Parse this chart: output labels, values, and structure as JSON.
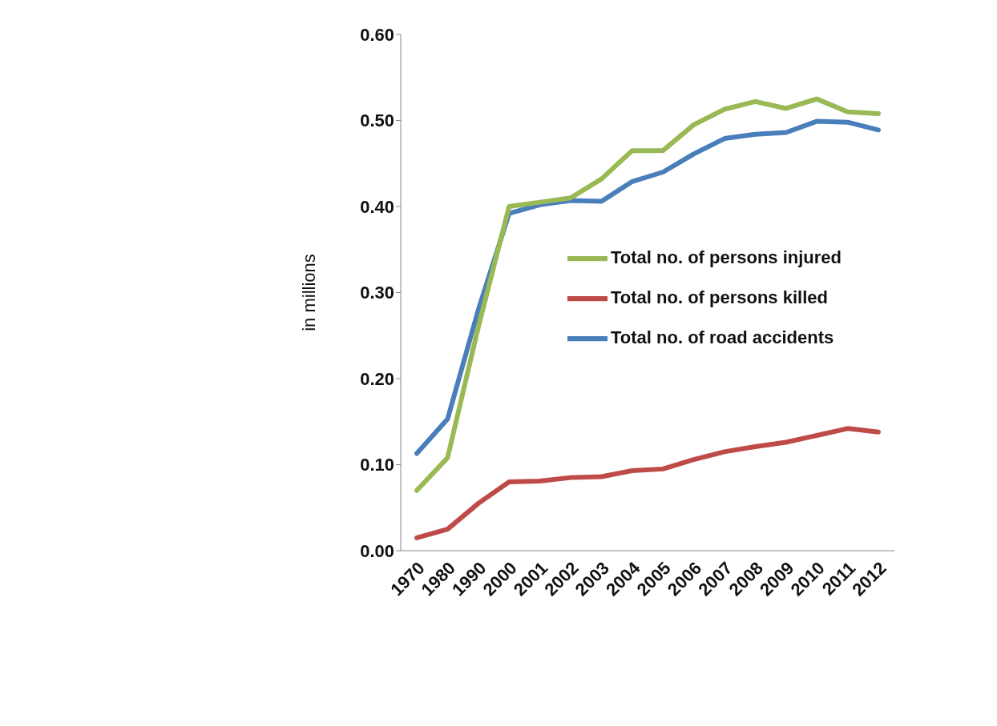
{
  "chart_data": {
    "type": "line",
    "ylabel": "in millions",
    "categories": [
      "1970",
      "1980",
      "1990",
      "2000",
      "2001",
      "2002",
      "2003",
      "2004",
      "2005",
      "2006",
      "2007",
      "2008",
      "2009",
      "2010",
      "2011",
      "2012"
    ],
    "series": [
      {
        "name": "Total no. of road accidents",
        "color": "#4a7ebb",
        "values": [
          0.113,
          0.153,
          0.28,
          0.392,
          0.402,
          0.407,
          0.406,
          0.429,
          0.44,
          0.461,
          0.479,
          0.484,
          0.486,
          0.499,
          0.498,
          0.489
        ]
      },
      {
        "name": "Total no. of persons killed",
        "color": "#be4b48",
        "values": [
          0.015,
          0.025,
          0.055,
          0.08,
          0.081,
          0.085,
          0.086,
          0.093,
          0.095,
          0.106,
          0.115,
          0.121,
          0.126,
          0.134,
          0.142,
          0.138
        ]
      },
      {
        "name": "Total no. of persons injured",
        "color": "#98b954",
        "values": [
          0.07,
          0.108,
          0.26,
          0.4,
          0.405,
          0.41,
          0.432,
          0.465,
          0.465,
          0.495,
          0.513,
          0.522,
          0.514,
          0.525,
          0.51,
          0.508
        ]
      }
    ],
    "ylim": [
      0,
      0.6
    ],
    "yticks": [
      {
        "value": 0,
        "label": "0.00"
      },
      {
        "value": 0.1,
        "label": "0.10"
      },
      {
        "value": 0.2,
        "label": "0.20"
      },
      {
        "value": 0.3,
        "label": "0.30"
      },
      {
        "value": 0.4,
        "label": "0.40"
      },
      {
        "value": 0.5,
        "label": "0.50"
      },
      {
        "value": 0.6,
        "label": "0.60"
      }
    ],
    "grid": false,
    "legend": "right",
    "marker": "none",
    "line_style": "solid"
  }
}
